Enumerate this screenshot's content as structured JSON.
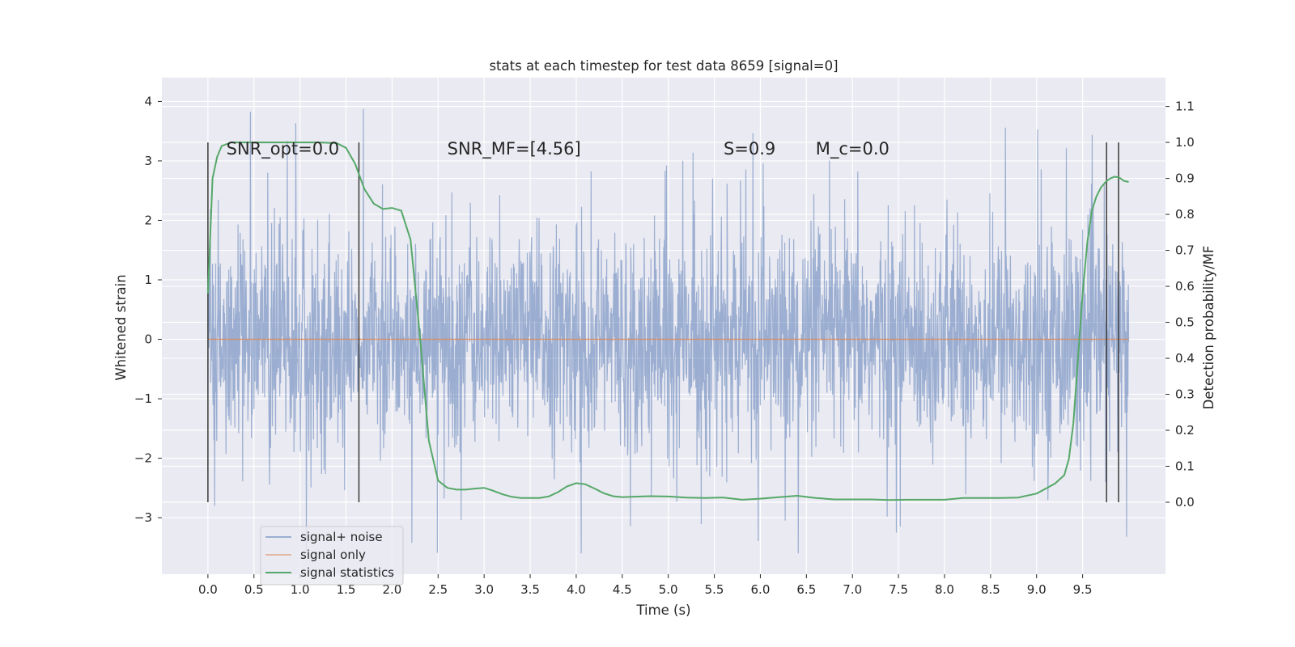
{
  "chart_data": {
    "type": "line",
    "title": "stats at each timestep for test data 8659 [signal=0]",
    "xlabel": "Time (s)",
    "ylabel": "Whitened strain",
    "ylabel_right": "Detection probability/MF",
    "xlim": [
      -0.5,
      10.4
    ],
    "ylim": [
      -3.95,
      4.4
    ],
    "ylim_right": [
      -0.2,
      1.18
    ],
    "grid": true,
    "legend_position": "lower-left",
    "x_ticks": [
      "0.0",
      "0.5",
      "1.0",
      "1.5",
      "2.0",
      "2.5",
      "3.0",
      "3.5",
      "4.0",
      "4.5",
      "5.0",
      "5.5",
      "6.0",
      "6.5",
      "7.0",
      "7.5",
      "8.0",
      "8.5",
      "9.0",
      "9.5"
    ],
    "y_ticks": [
      "−3",
      "−2",
      "−1",
      "0",
      "1",
      "2",
      "3",
      "4"
    ],
    "y_ticks_right": [
      "0.0",
      "0.1",
      "0.2",
      "0.3",
      "0.4",
      "0.5",
      "0.6",
      "0.7",
      "0.8",
      "0.9",
      "1.0",
      "1.1"
    ],
    "annotations": [
      {
        "text": "SNR_opt=0.0",
        "x": 0.2,
        "y": 3.2
      },
      {
        "text": "SNR_MF=[4.56]",
        "x": 2.6,
        "y": 3.2
      },
      {
        "text": "S=0.9",
        "x": 5.6,
        "y": 3.2
      },
      {
        "text": "M_c=0.0",
        "x": 6.6,
        "y": 3.2
      }
    ],
    "vertical_lines": [
      0.0,
      1.64,
      9.76,
      9.89
    ],
    "vertical_line_range_right": [
      0.0,
      1.0
    ],
    "series": [
      {
        "name": "signal+ noise",
        "color": "#4c72b0",
        "axis": "left",
        "x_range": [
          0.0,
          10.0
        ],
        "typical_amplitude": 1.45,
        "max": 4.05,
        "min": -3.6
      },
      {
        "name": "signal only",
        "color": "#dd8452",
        "axis": "left",
        "x": [
          0.0,
          10.0
        ],
        "values": [
          0.0,
          0.0
        ]
      },
      {
        "name": "signal statistics",
        "color": "#55a868",
        "axis": "right",
        "x": [
          0.0,
          0.05,
          0.1,
          0.15,
          0.25,
          0.4,
          0.6,
          0.8,
          1.0,
          1.2,
          1.4,
          1.5,
          1.6,
          1.7,
          1.8,
          1.9,
          2.0,
          2.1,
          2.2,
          2.3,
          2.4,
          2.5,
          2.6,
          2.7,
          2.8,
          2.9,
          3.0,
          3.1,
          3.2,
          3.3,
          3.4,
          3.5,
          3.6,
          3.7,
          3.8,
          3.9,
          4.0,
          4.1,
          4.2,
          4.3,
          4.4,
          4.5,
          4.6,
          4.8,
          5.0,
          5.2,
          5.4,
          5.6,
          5.8,
          6.0,
          6.2,
          6.4,
          6.6,
          6.8,
          7.0,
          7.2,
          7.4,
          7.6,
          7.8,
          8.0,
          8.2,
          8.4,
          8.6,
          8.8,
          9.0,
          9.1,
          9.2,
          9.3,
          9.35,
          9.4,
          9.45,
          9.5,
          9.55,
          9.6,
          9.65,
          9.7,
          9.75,
          9.8,
          9.85,
          9.9,
          9.95,
          10.0
        ],
        "values": [
          0.58,
          0.9,
          0.96,
          0.99,
          1.0,
          1.0,
          1.0,
          1.0,
          1.0,
          1.0,
          0.998,
          0.985,
          0.94,
          0.87,
          0.83,
          0.815,
          0.818,
          0.81,
          0.73,
          0.47,
          0.17,
          0.06,
          0.04,
          0.035,
          0.035,
          0.038,
          0.04,
          0.032,
          0.022,
          0.015,
          0.012,
          0.012,
          0.012,
          0.016,
          0.028,
          0.044,
          0.053,
          0.05,
          0.038,
          0.025,
          0.017,
          0.014,
          0.015,
          0.017,
          0.016,
          0.013,
          0.012,
          0.013,
          0.007,
          0.01,
          0.014,
          0.018,
          0.012,
          0.008,
          0.008,
          0.008,
          0.006,
          0.007,
          0.007,
          0.007,
          0.012,
          0.012,
          0.012,
          0.013,
          0.024,
          0.038,
          0.052,
          0.075,
          0.12,
          0.22,
          0.4,
          0.58,
          0.72,
          0.81,
          0.85,
          0.875,
          0.89,
          0.9,
          0.905,
          0.902,
          0.893,
          0.89
        ]
      }
    ]
  }
}
